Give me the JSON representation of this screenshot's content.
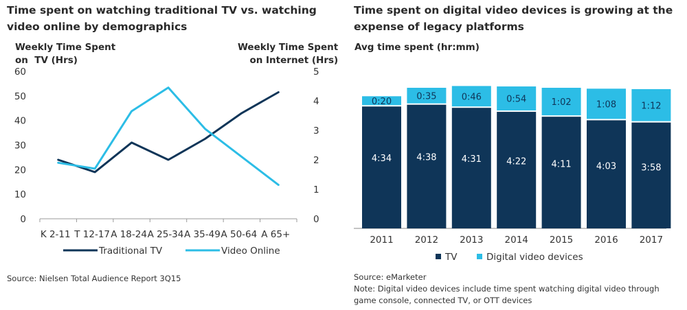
{
  "left": {
    "title": "Time spent on watching traditional TV vs. watching video online by demographics",
    "left_axis_title_line1": "Weekly Time Spent",
    "left_axis_title_line2": "on  TV (Hrs)",
    "right_axis_title_line1": "Weekly Time Spent",
    "right_axis_title_line2": "on Internet (Hrs)",
    "source": "Source: Nielsen Total Audience Report 3Q15"
  },
  "right": {
    "title": "Time spent on digital video devices is growing at the expense of legacy platforms",
    "avg_label": "Avg time spent (hr:mm)",
    "source": "Source: eMarketer",
    "note_line1": "Note: Digital video devices include time spent watching digital video through",
    "note_line2": "game console, connected TV, or OTT devices"
  },
  "colors": {
    "dark_navy": "#0f3558",
    "light_blue": "#2cbde6",
    "gridline": "#d9d9d9",
    "axis": "#888888"
  },
  "chart_data": [
    {
      "type": "line",
      "title": "Time spent on watching traditional TV vs. watching video online by demographics",
      "categories": [
        "K 2-11",
        "T 12-17",
        "A 18-24",
        "A 25-34",
        "A 35-49",
        "A 50-64",
        "A 65+"
      ],
      "series": [
        {
          "name": "Traditional TV",
          "axis": "left",
          "color": "#0f3558",
          "values": [
            24,
            19,
            31,
            24,
            32.5,
            43,
            51.5
          ]
        },
        {
          "name": "Video Online",
          "axis": "right",
          "color": "#2cbde6",
          "values": [
            1.9,
            1.7,
            3.65,
            4.45,
            3.05,
            2.1,
            1.15
          ]
        }
      ],
      "ylabel": "Weekly Time Spent on TV (Hrs)",
      "ylabel_right": "Weekly Time Spent on Internet (Hrs)",
      "ylim": [
        0,
        60
      ],
      "yticks": [
        "0",
        "10",
        "20",
        "30",
        "40",
        "50",
        "60"
      ],
      "ylim_right": [
        0,
        5
      ],
      "yticks_right": [
        "0",
        "1",
        "2",
        "3",
        "4",
        "5"
      ],
      "grid": false,
      "legend": "bottom"
    },
    {
      "type": "bar",
      "stacked": true,
      "title": "Time spent on digital video devices is growing at the expense of legacy platforms",
      "categories": [
        "2011",
        "2012",
        "2013",
        "2014",
        "2015",
        "2016",
        "2017"
      ],
      "series": [
        {
          "name": "TV",
          "color": "#0f3558",
          "values_minutes": [
            274,
            278,
            271,
            262,
            251,
            243,
            238
          ],
          "labels": [
            "4:34",
            "4:38",
            "4:31",
            "4:22",
            "4:11",
            "4:03",
            "3:58"
          ]
        },
        {
          "name": "Digital video devices",
          "color": "#2cbde6",
          "values_minutes": [
            20,
            35,
            46,
            54,
            62,
            68,
            72
          ],
          "labels": [
            "0:20",
            "0:35",
            "0:46",
            "0:54",
            "1:02",
            "1:08",
            "1:12"
          ]
        }
      ],
      "ylabel": "Avg time spent (hr:mm)",
      "grid": false,
      "legend": "bottom"
    }
  ]
}
